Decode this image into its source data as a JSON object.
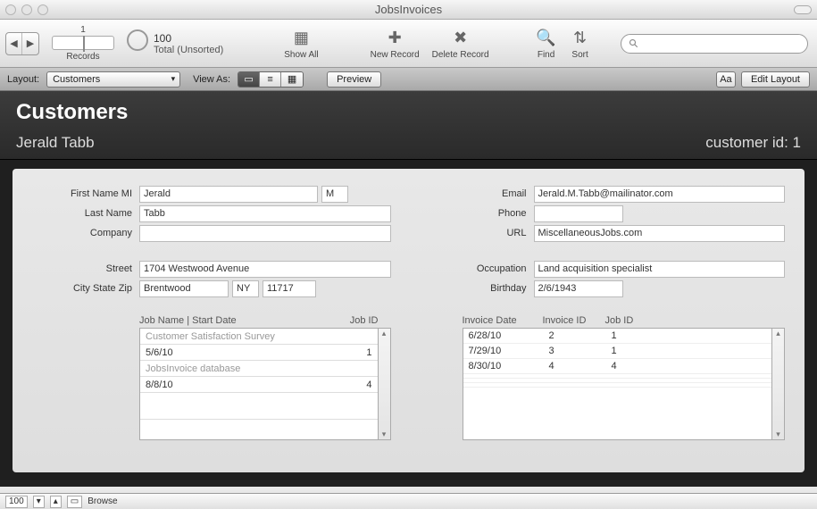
{
  "window": {
    "title": "JobsInvoices"
  },
  "toolbar": {
    "record_current": "1",
    "record_total": "100",
    "record_status": "Total (Unsorted)",
    "records_label": "Records",
    "show_all": "Show All",
    "new_record": "New Record",
    "delete_record": "Delete Record",
    "find": "Find",
    "sort": "Sort",
    "search_placeholder": ""
  },
  "layoutbar": {
    "layout_label": "Layout:",
    "layout_value": "Customers",
    "view_as_label": "View As:",
    "preview": "Preview",
    "aa": "Aa",
    "edit_layout": "Edit Layout"
  },
  "header": {
    "title": "Customers",
    "name": "Jerald Tabb",
    "id_label": "customer id: 1"
  },
  "labels": {
    "first_name": "First Name MI",
    "last_name": "Last Name",
    "company": "Company",
    "street": "Street",
    "csz": "City State Zip",
    "email": "Email",
    "phone": "Phone",
    "url": "URL",
    "occupation": "Occupation",
    "birthday": "Birthday",
    "jobs_header": "Job Name | Start Date",
    "job_id": "Job ID",
    "invoice_date": "Invoice Date",
    "invoice_id": "Invoice ID",
    "job_id2": "Job ID"
  },
  "fields": {
    "first_name": "Jerald",
    "mi": "M",
    "last_name": "Tabb",
    "company": "",
    "street": "1704 Westwood Avenue",
    "city": "Brentwood",
    "state": "NY",
    "zip": "11717",
    "email": "Jerald.M.Tabb@mailinator.com",
    "phone": "",
    "url": "MiscellaneousJobs.com",
    "occupation": "Land acquisition specialist",
    "birthday": "2/6/1943"
  },
  "jobs": [
    {
      "name": "Customer Satisfaction Survey",
      "date": "5/6/10",
      "id": "1"
    },
    {
      "name": "JobsInvoice database",
      "date": "8/8/10",
      "id": "4"
    }
  ],
  "invoices": [
    {
      "date": "6/28/10",
      "inv_id": "2",
      "job_id": "1"
    },
    {
      "date": "7/29/10",
      "inv_id": "3",
      "job_id": "1"
    },
    {
      "date": "8/30/10",
      "inv_id": "4",
      "job_id": "4"
    }
  ],
  "statusbar": {
    "zoom": "100",
    "mode": "Browse"
  },
  "colors": {
    "dark_bg": "#2a2a2a",
    "panel": "#e4e4e4"
  }
}
